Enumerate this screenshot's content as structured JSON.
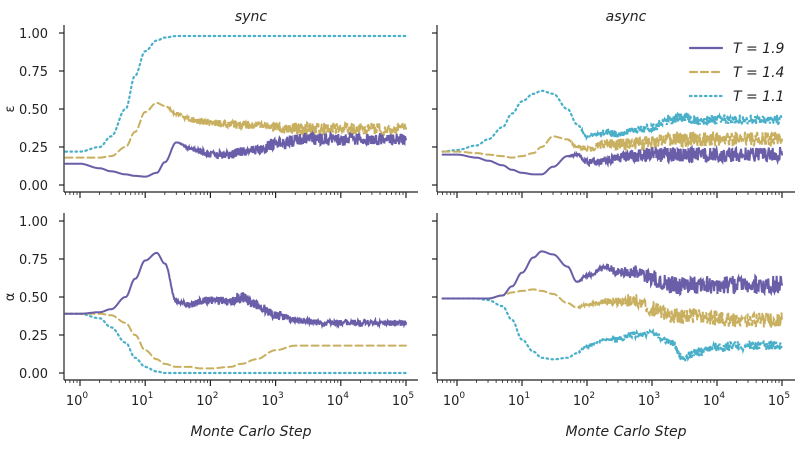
{
  "chart_data": [
    {
      "type": "line",
      "panel": "top-left",
      "title": "sync",
      "ylabel": "ε",
      "xlabel": "",
      "xscale": "log",
      "xlim": [
        0.6,
        150000
      ],
      "ylim": [
        -0.05,
        1.05
      ],
      "yticks": [
        "0.00",
        "0.25",
        "0.50",
        "0.75",
        "1.00"
      ],
      "x": [
        0.6,
        1,
        2,
        3,
        5,
        7,
        10,
        15,
        20,
        30,
        50,
        70,
        100,
        200,
        300,
        500,
        1000,
        2000,
        3000,
        5000,
        10000,
        20000,
        50000,
        100000
      ],
      "series": [
        {
          "name": "T = 1.9",
          "color": "#6b5ea8",
          "style": "solid",
          "values": [
            0.14,
            0.14,
            0.11,
            0.09,
            0.07,
            0.06,
            0.055,
            0.08,
            0.15,
            0.28,
            0.24,
            0.22,
            0.2,
            0.2,
            0.22,
            0.23,
            0.27,
            0.29,
            0.31,
            0.3,
            0.3,
            0.3,
            0.3,
            0.3
          ],
          "noise": [
            0,
            0,
            0,
            0,
            0,
            0,
            0,
            0,
            0,
            0,
            0.01,
            0.02,
            0.02,
            0.03,
            0.03,
            0.03,
            0.04,
            0.04,
            0.04,
            0.04,
            0.04,
            0.04,
            0.04,
            0.04
          ]
        },
        {
          "name": "T = 1.4",
          "color": "#c9b060",
          "style": "dashed",
          "values": [
            0.18,
            0.18,
            0.18,
            0.19,
            0.25,
            0.35,
            0.48,
            0.54,
            0.52,
            0.47,
            0.43,
            0.42,
            0.41,
            0.4,
            0.4,
            0.39,
            0.38,
            0.37,
            0.37,
            0.37,
            0.37,
            0.37,
            0.37,
            0.37
          ],
          "noise": [
            0,
            0,
            0,
            0,
            0,
            0,
            0,
            0,
            0,
            0.01,
            0.02,
            0.02,
            0.02,
            0.03,
            0.03,
            0.03,
            0.03,
            0.04,
            0.04,
            0.04,
            0.04,
            0.04,
            0.04,
            0.04
          ]
        },
        {
          "name": "T = 1.1",
          "color": "#4ab0c9",
          "style": "dotted",
          "values": [
            0.22,
            0.22,
            0.25,
            0.32,
            0.5,
            0.72,
            0.88,
            0.95,
            0.97,
            0.98,
            0.98,
            0.98,
            0.98,
            0.98,
            0.98,
            0.98,
            0.98,
            0.98,
            0.98,
            0.98,
            0.98,
            0.98,
            0.98,
            0.98
          ],
          "noise": [
            0,
            0,
            0,
            0,
            0,
            0,
            0,
            0,
            0,
            0,
            0,
            0,
            0,
            0,
            0,
            0,
            0,
            0,
            0,
            0,
            0,
            0,
            0,
            0
          ]
        }
      ]
    },
    {
      "type": "line",
      "panel": "top-right",
      "title": "async",
      "ylabel": "",
      "xlabel": "",
      "xscale": "log",
      "xlim": [
        0.6,
        150000
      ],
      "ylim": [
        -0.05,
        1.05
      ],
      "x": [
        0.6,
        1,
        2,
        3,
        5,
        7,
        10,
        15,
        20,
        30,
        50,
        70,
        100,
        200,
        300,
        500,
        1000,
        2000,
        3000,
        5000,
        10000,
        20000,
        50000,
        100000
      ],
      "series": [
        {
          "name": "T = 1.9",
          "color": "#6b5ea8",
          "style": "solid",
          "values": [
            0.2,
            0.2,
            0.18,
            0.16,
            0.13,
            0.1,
            0.08,
            0.07,
            0.07,
            0.12,
            0.19,
            0.2,
            0.15,
            0.16,
            0.18,
            0.19,
            0.2,
            0.2,
            0.2,
            0.2,
            0.2,
            0.2,
            0.2,
            0.2
          ],
          "noise": [
            0,
            0,
            0,
            0,
            0,
            0,
            0,
            0,
            0,
            0,
            0,
            0.01,
            0.02,
            0.03,
            0.03,
            0.04,
            0.05,
            0.05,
            0.05,
            0.05,
            0.05,
            0.05,
            0.05,
            0.05
          ]
        },
        {
          "name": "T = 1.4",
          "color": "#c9b060",
          "style": "dashed",
          "values": [
            0.22,
            0.22,
            0.21,
            0.2,
            0.19,
            0.18,
            0.19,
            0.21,
            0.25,
            0.32,
            0.3,
            0.25,
            0.24,
            0.27,
            0.27,
            0.27,
            0.28,
            0.3,
            0.3,
            0.3,
            0.3,
            0.3,
            0.3,
            0.3
          ],
          "noise": [
            0,
            0,
            0,
            0,
            0,
            0,
            0,
            0,
            0,
            0,
            0,
            0.01,
            0.02,
            0.03,
            0.04,
            0.04,
            0.05,
            0.05,
            0.05,
            0.05,
            0.05,
            0.05,
            0.05,
            0.05
          ]
        },
        {
          "name": "T = 1.1",
          "color": "#4ab0c9",
          "style": "dotted",
          "values": [
            0.22,
            0.23,
            0.26,
            0.3,
            0.38,
            0.47,
            0.55,
            0.6,
            0.62,
            0.6,
            0.5,
            0.4,
            0.32,
            0.35,
            0.33,
            0.36,
            0.38,
            0.43,
            0.45,
            0.42,
            0.43,
            0.43,
            0.43,
            0.43
          ],
          "noise": [
            0,
            0,
            0,
            0,
            0,
            0,
            0,
            0,
            0,
            0,
            0,
            0,
            0.01,
            0.02,
            0.02,
            0.02,
            0.03,
            0.03,
            0.03,
            0.03,
            0.03,
            0.03,
            0.03,
            0.03
          ]
        }
      ]
    },
    {
      "type": "line",
      "panel": "bottom-left",
      "title": "",
      "ylabel": "α",
      "xlabel": "Monte Carlo Step",
      "xscale": "log",
      "xlim": [
        0.6,
        150000
      ],
      "ylim": [
        -0.05,
        1.05
      ],
      "yticks": [
        "0.00",
        "0.25",
        "0.50",
        "0.75",
        "1.00"
      ],
      "xticks": [
        "10",
        "10",
        "10",
        "10",
        "10",
        "10"
      ],
      "xtick_exponents": [
        "0",
        "1",
        "2",
        "3",
        "4",
        "5"
      ],
      "x": [
        0.6,
        1,
        2,
        3,
        5,
        7,
        10,
        15,
        20,
        30,
        50,
        70,
        100,
        200,
        300,
        500,
        1000,
        2000,
        3000,
        5000,
        10000,
        20000,
        50000,
        100000
      ],
      "series": [
        {
          "name": "T = 1.9",
          "color": "#6b5ea8",
          "style": "solid",
          "values": [
            0.39,
            0.39,
            0.4,
            0.42,
            0.5,
            0.62,
            0.74,
            0.79,
            0.72,
            0.47,
            0.45,
            0.47,
            0.48,
            0.47,
            0.5,
            0.45,
            0.38,
            0.35,
            0.34,
            0.33,
            0.33,
            0.33,
            0.33,
            0.33
          ],
          "noise": [
            0,
            0,
            0,
            0,
            0,
            0,
            0,
            0,
            0,
            0.01,
            0.02,
            0.02,
            0.03,
            0.03,
            0.04,
            0.03,
            0.03,
            0.02,
            0.02,
            0.02,
            0.02,
            0.02,
            0.02,
            0.02
          ]
        },
        {
          "name": "T = 1.4",
          "color": "#c9b060",
          "style": "dashed",
          "values": [
            0.39,
            0.39,
            0.39,
            0.38,
            0.33,
            0.25,
            0.15,
            0.09,
            0.06,
            0.04,
            0.04,
            0.03,
            0.03,
            0.04,
            0.06,
            0.09,
            0.15,
            0.18,
            0.18,
            0.18,
            0.18,
            0.18,
            0.18,
            0.18
          ],
          "noise": [
            0,
            0,
            0,
            0,
            0,
            0,
            0,
            0,
            0,
            0,
            0,
            0,
            0,
            0,
            0,
            0,
            0,
            0,
            0,
            0,
            0,
            0,
            0,
            0
          ]
        },
        {
          "name": "T = 1.1",
          "color": "#4ab0c9",
          "style": "dotted",
          "values": [
            0.39,
            0.39,
            0.36,
            0.3,
            0.2,
            0.1,
            0.04,
            0.01,
            0,
            0,
            0,
            0,
            0,
            0,
            0,
            0,
            0,
            0,
            0,
            0,
            0,
            0,
            0,
            0
          ],
          "noise": [
            0,
            0,
            0,
            0,
            0,
            0,
            0,
            0,
            0,
            0,
            0,
            0,
            0,
            0,
            0,
            0,
            0,
            0,
            0,
            0,
            0,
            0,
            0,
            0
          ]
        }
      ]
    },
    {
      "type": "line",
      "panel": "bottom-right",
      "title": "",
      "ylabel": "",
      "xlabel": "Monte Carlo Step",
      "xscale": "log",
      "xlim": [
        0.6,
        150000
      ],
      "ylim": [
        -0.05,
        1.05
      ],
      "xticks": [
        "10",
        "10",
        "10",
        "10",
        "10",
        "10"
      ],
      "xtick_exponents": [
        "0",
        "1",
        "2",
        "3",
        "4",
        "5"
      ],
      "x": [
        0.6,
        1,
        2,
        3,
        5,
        7,
        10,
        15,
        20,
        30,
        50,
        70,
        100,
        200,
        300,
        500,
        1000,
        2000,
        3000,
        5000,
        10000,
        20000,
        50000,
        100000
      ],
      "series": [
        {
          "name": "T = 1.9",
          "color": "#6b5ea8",
          "style": "solid",
          "values": [
            0.49,
            0.49,
            0.49,
            0.49,
            0.51,
            0.57,
            0.66,
            0.76,
            0.8,
            0.78,
            0.7,
            0.6,
            0.64,
            0.7,
            0.66,
            0.67,
            0.62,
            0.58,
            0.57,
            0.58,
            0.58,
            0.58,
            0.58,
            0.58
          ],
          "noise": [
            0,
            0,
            0,
            0,
            0,
            0,
            0,
            0,
            0,
            0,
            0,
            0,
            0.01,
            0.02,
            0.03,
            0.04,
            0.06,
            0.06,
            0.06,
            0.06,
            0.06,
            0.06,
            0.06,
            0.06
          ]
        },
        {
          "name": "T = 1.4",
          "color": "#c9b060",
          "style": "dashed",
          "values": [
            0.49,
            0.49,
            0.49,
            0.49,
            0.51,
            0.53,
            0.54,
            0.55,
            0.54,
            0.52,
            0.46,
            0.43,
            0.45,
            0.47,
            0.47,
            0.48,
            0.42,
            0.38,
            0.37,
            0.38,
            0.36,
            0.35,
            0.35,
            0.35
          ],
          "noise": [
            0,
            0,
            0,
            0,
            0,
            0,
            0,
            0,
            0,
            0,
            0,
            0,
            0.01,
            0.02,
            0.03,
            0.04,
            0.05,
            0.05,
            0.05,
            0.05,
            0.05,
            0.05,
            0.05,
            0.05
          ]
        },
        {
          "name": "T = 1.1",
          "color": "#4ab0c9",
          "style": "dotted",
          "values": [
            0.49,
            0.49,
            0.49,
            0.48,
            0.44,
            0.35,
            0.22,
            0.14,
            0.1,
            0.09,
            0.1,
            0.13,
            0.18,
            0.22,
            0.22,
            0.25,
            0.26,
            0.2,
            0.1,
            0.14,
            0.17,
            0.18,
            0.18,
            0.18
          ],
          "noise": [
            0,
            0,
            0,
            0,
            0,
            0,
            0,
            0,
            0,
            0,
            0,
            0,
            0.01,
            0.01,
            0.02,
            0.02,
            0.02,
            0.02,
            0.02,
            0.03,
            0.03,
            0.03,
            0.03,
            0.03
          ]
        }
      ]
    }
  ],
  "legend": {
    "placement": "top-right of async ε panel",
    "entries": [
      {
        "label": "T = 1.9",
        "color": "#6b5ea8",
        "style": "solid"
      },
      {
        "label": "T = 1.4",
        "color": "#c9b060",
        "style": "dashed"
      },
      {
        "label": "T = 1.1",
        "color": "#4ab0c9",
        "style": "dotted"
      }
    ]
  }
}
